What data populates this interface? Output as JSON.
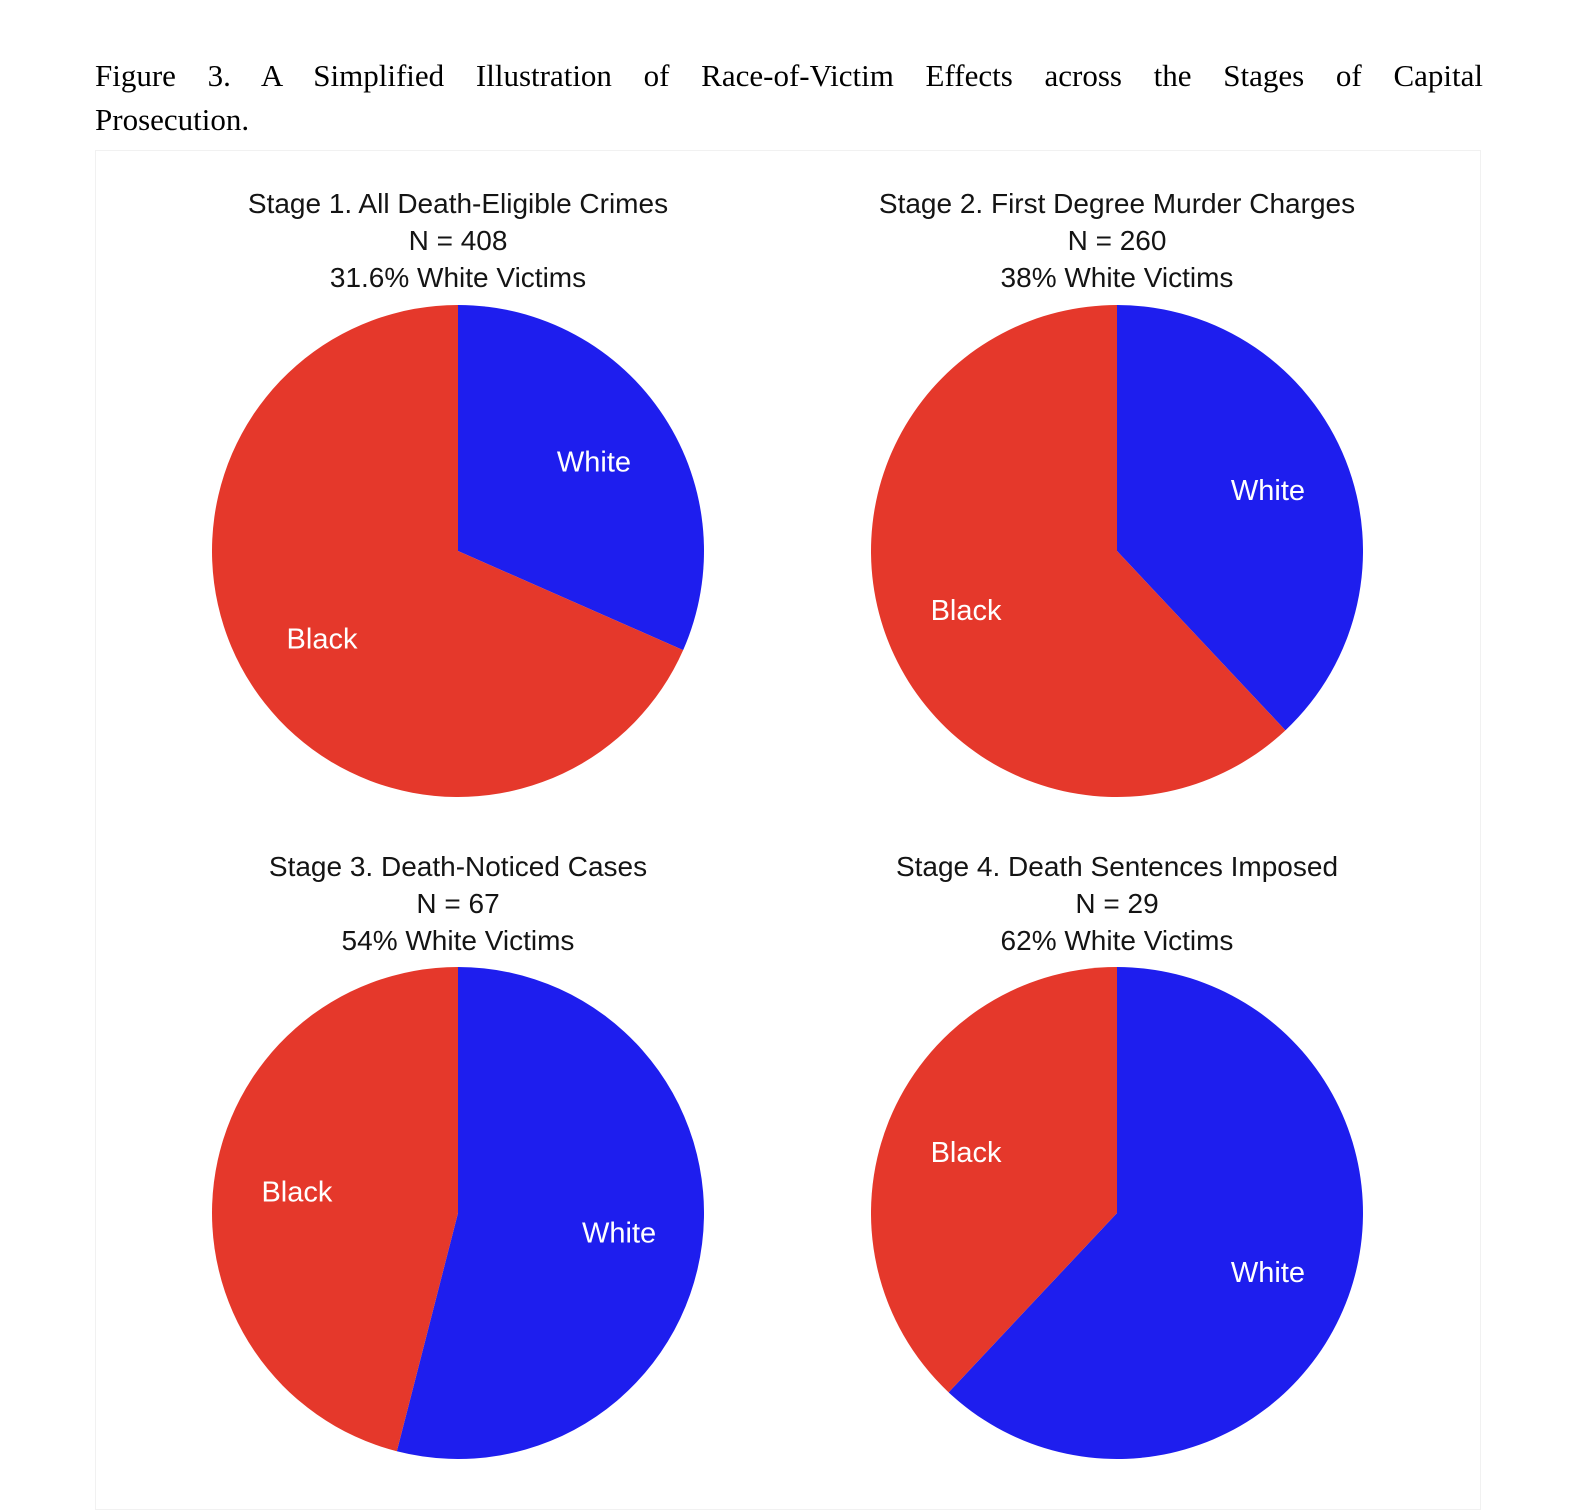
{
  "figure_caption": {
    "line1": "Figure 3. A Simplified Illustration of Race-of-Victim Effects across the Stages of Capital",
    "line2": "Prosecution."
  },
  "colors": {
    "white_slice": "#1e1eee",
    "black_slice": "#e5382b",
    "slice_label_text": "#ffffff"
  },
  "chart_data": [
    {
      "type": "pie",
      "title": "Stage 1. All Death-Eligible Crimes",
      "subtitle_n": "N = 408",
      "subtitle_pct": "31.6% White Victims",
      "start_angle": "12 o'clock, clockwise",
      "legend_position": "labels inside slices",
      "slices": [
        {
          "label": "White",
          "value_pct": 31.6,
          "color_key": "white_slice"
        },
        {
          "label": "Black",
          "value_pct": 68.4,
          "color_key": "black_slice"
        }
      ]
    },
    {
      "type": "pie",
      "title": "Stage 2. First Degree Murder Charges",
      "subtitle_n": "N = 260",
      "subtitle_pct": "38% White Victims",
      "start_angle": "12 o'clock, clockwise",
      "legend_position": "labels inside slices",
      "slices": [
        {
          "label": "White",
          "value_pct": 38,
          "color_key": "white_slice"
        },
        {
          "label": "Black",
          "value_pct": 62,
          "color_key": "black_slice"
        }
      ]
    },
    {
      "type": "pie",
      "title": "Stage 3. Death-Noticed Cases",
      "subtitle_n": "N = 67",
      "subtitle_pct": "54% White Victims",
      "start_angle": "12 o'clock, clockwise",
      "legend_position": "labels inside slices",
      "slices": [
        {
          "label": "White",
          "value_pct": 54,
          "color_key": "white_slice"
        },
        {
          "label": "Black",
          "value_pct": 46,
          "color_key": "black_slice"
        }
      ]
    },
    {
      "type": "pie",
      "title": "Stage 4. Death Sentences Imposed",
      "subtitle_n": "N = 29",
      "subtitle_pct": "62% White Victims",
      "start_angle": "12 o'clock, clockwise",
      "legend_position": "labels inside slices",
      "slices": [
        {
          "label": "White",
          "value_pct": 62,
          "color_key": "white_slice"
        },
        {
          "label": "Black",
          "value_pct": 38,
          "color_key": "black_slice"
        }
      ]
    }
  ]
}
